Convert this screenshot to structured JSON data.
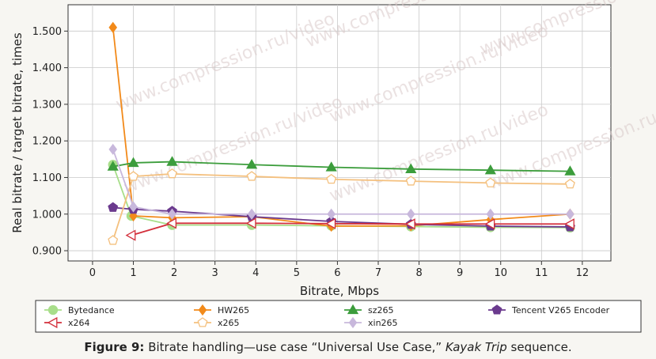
{
  "chart_data": {
    "type": "line",
    "xlabel": "Bitrate, Mbps",
    "ylabel": "Real bitrate / target bitrate, times",
    "xlim": [
      -0.6,
      12.7
    ],
    "ylim": [
      0.872,
      1.572
    ],
    "x_ticks": [
      0,
      1,
      2,
      3,
      4,
      5,
      6,
      7,
      8,
      9,
      10,
      11,
      12
    ],
    "y_ticks": [
      0.9,
      1.0,
      1.1,
      1.2,
      1.3,
      1.4,
      1.5
    ],
    "y_tick_labels": [
      "0.900",
      "1.000",
      "1.100",
      "1.200",
      "1.300",
      "1.400",
      "1.500"
    ],
    "grid": true,
    "legend_position": "bottom",
    "series": [
      {
        "name": "Bytedance",
        "color": "#a8de8a",
        "marker": "circle",
        "x": [
          0.5,
          0.95,
          1.95,
          3.9,
          5.85,
          7.8,
          9.75,
          11.7
        ],
        "y": [
          1.135,
          0.995,
          0.97,
          0.97,
          0.968,
          0.966,
          0.964,
          0.963
        ]
      },
      {
        "name": "HW265",
        "color": "#f28a1a",
        "marker": "diamond",
        "x": [
          0.5,
          1.0,
          1.95,
          3.9,
          5.85,
          7.8,
          9.75,
          11.7
        ],
        "y": [
          1.51,
          0.995,
          0.99,
          0.993,
          0.967,
          0.968,
          0.985,
          1.0
        ]
      },
      {
        "name": "sz265",
        "color": "#3c9d3c",
        "marker": "triangle-up",
        "x": [
          0.5,
          1.0,
          1.95,
          3.9,
          5.85,
          7.8,
          9.75,
          11.7
        ],
        "y": [
          1.13,
          1.14,
          1.143,
          1.135,
          1.128,
          1.123,
          1.12,
          1.117
        ]
      },
      {
        "name": "Tencent V265 Encoder",
        "color": "#6b3a8e",
        "marker": "pentagon",
        "x": [
          0.5,
          1.0,
          1.95,
          3.9,
          5.85,
          7.8,
          9.75,
          11.7
        ],
        "y": [
          1.018,
          1.013,
          1.008,
          0.993,
          0.98,
          0.972,
          0.967,
          0.965
        ]
      },
      {
        "name": "x264",
        "color": "#d3303c",
        "marker": "triangle-left",
        "x": [
          0.95,
          1.95,
          3.9,
          5.85,
          7.8,
          9.75,
          11.7
        ],
        "y": [
          0.942,
          0.975,
          0.975,
          0.974,
          0.973,
          0.973,
          0.973
        ]
      },
      {
        "name": "x265",
        "color": "#f4c07e",
        "marker": "pentagon-open",
        "x": [
          0.5,
          1.0,
          1.95,
          3.9,
          5.85,
          7.8,
          9.75,
          11.7
        ],
        "y": [
          0.928,
          1.103,
          1.11,
          1.103,
          1.095,
          1.09,
          1.085,
          1.082
        ]
      },
      {
        "name": "xin265",
        "color": "#c8b8dc",
        "marker": "diamond",
        "x": [
          0.5,
          1.0,
          1.95,
          3.9,
          5.85,
          7.8,
          9.75,
          11.7
        ],
        "y": [
          1.177,
          1.02,
          1.0,
          1.0,
          1.0,
          1.0,
          1.0,
          1.0
        ]
      }
    ]
  },
  "watermark": "www.compression.ru/video",
  "caption": {
    "lead": "Figure 9:",
    "part1": " Bitrate handling—use case “Universal Use Case,” ",
    "italic": "Kayak Trip",
    "part2": " sequence."
  }
}
